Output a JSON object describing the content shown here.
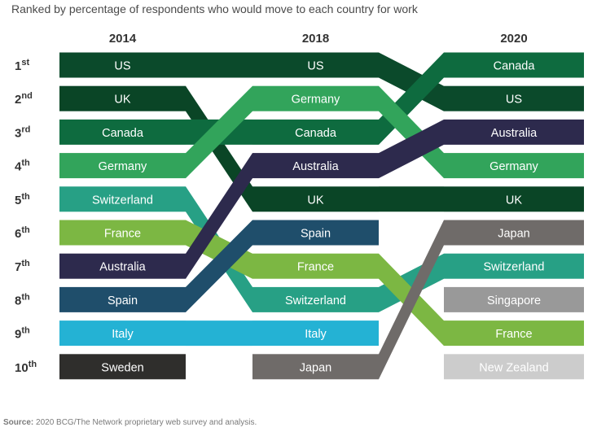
{
  "subtitle": "Ranked by percentage of respondents who would move to each country for work",
  "source_label": "Source:",
  "source_text": "2020 BCG/The Network proprietary web survey and analysis.",
  "chart_data": {
    "type": "bump",
    "years": [
      "2014",
      "2018",
      "2020"
    ],
    "ranks": [
      {
        "n": "1",
        "suffix": "st"
      },
      {
        "n": "2",
        "suffix": "nd"
      },
      {
        "n": "3",
        "suffix": "rd"
      },
      {
        "n": "4",
        "suffix": "th"
      },
      {
        "n": "5",
        "suffix": "th"
      },
      {
        "n": "6",
        "suffix": "th"
      },
      {
        "n": "7",
        "suffix": "th"
      },
      {
        "n": "8",
        "suffix": "th"
      },
      {
        "n": "9",
        "suffix": "th"
      },
      {
        "n": "10",
        "suffix": "th"
      }
    ],
    "series": [
      {
        "country": "US",
        "color": "#0b4a2b",
        "ranks": [
          1,
          1,
          2
        ]
      },
      {
        "country": "UK",
        "color": "#0a4526",
        "ranks": [
          2,
          5,
          5
        ]
      },
      {
        "country": "Canada",
        "color": "#0e6b3f",
        "ranks": [
          3,
          3,
          1
        ]
      },
      {
        "country": "Germany",
        "color": "#32a45b",
        "ranks": [
          4,
          2,
          4
        ]
      },
      {
        "country": "Switzerland",
        "color": "#27a085",
        "ranks": [
          5,
          8,
          7
        ]
      },
      {
        "country": "France",
        "color": "#7cb743",
        "ranks": [
          6,
          7,
          9
        ]
      },
      {
        "country": "Australia",
        "color": "#2d2a4d",
        "ranks": [
          7,
          4,
          3
        ]
      },
      {
        "country": "Spain",
        "color": "#1f4e6b",
        "ranks": [
          8,
          6,
          null
        ]
      },
      {
        "country": "Italy",
        "color": "#24b2d4",
        "ranks": [
          9,
          9,
          null
        ]
      },
      {
        "country": "Sweden",
        "color": "#2f2e2c",
        "ranks": [
          10,
          null,
          null
        ]
      },
      {
        "country": "Japan",
        "color": "#6f6b69",
        "ranks": [
          null,
          10,
          6
        ]
      },
      {
        "country": "Singapore",
        "color": "#999999",
        "ranks": [
          null,
          null,
          8
        ]
      },
      {
        "country": "New Zealand",
        "color": "#cccccc",
        "ranks": [
          null,
          null,
          10
        ]
      }
    ]
  }
}
